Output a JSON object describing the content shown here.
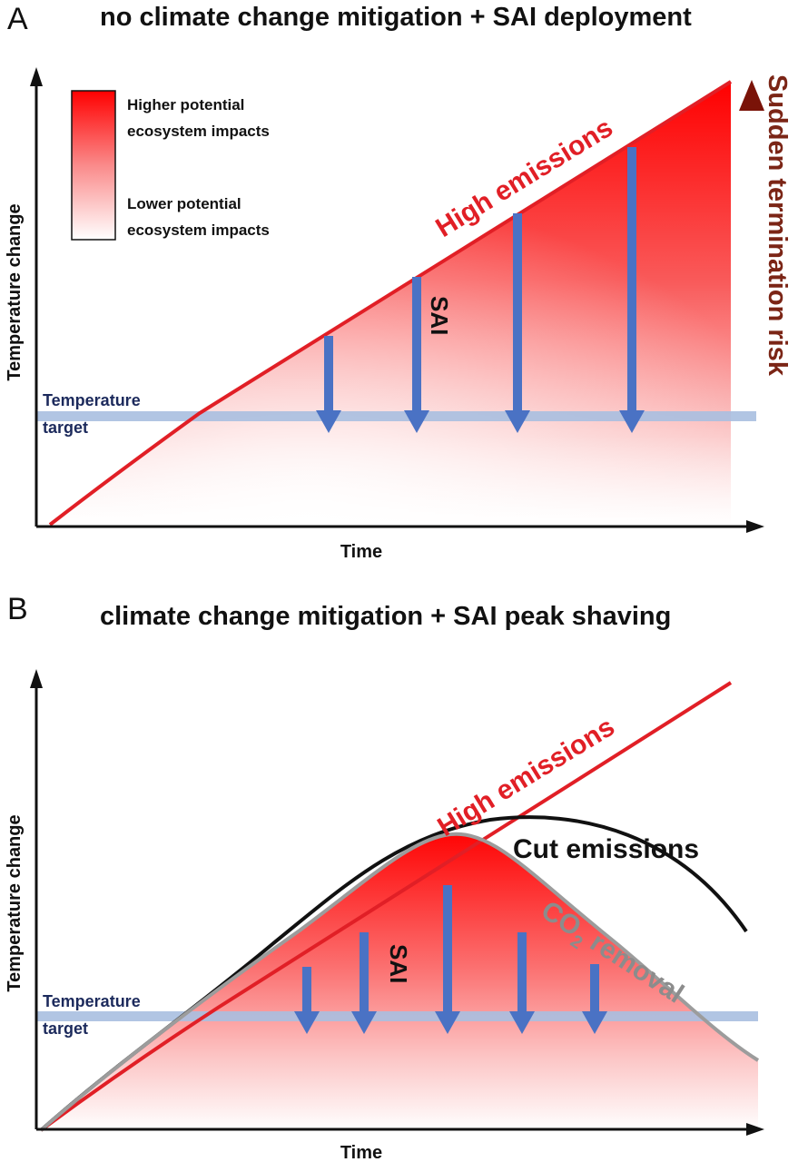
{
  "panel_a": {
    "letter": "A",
    "title": "no climate change mitigation + SAI deployment",
    "y_axis_label": "Temperature change",
    "x_axis_label": "Time",
    "target_label_line1": "Temperature",
    "target_label_line2": "target",
    "legend": {
      "high_line1": "Higher potential",
      "high_line2": "ecosystem impacts",
      "low_line1": "Lower potential",
      "low_line2": "ecosystem impacts"
    },
    "high_emissions_label": "High emissions",
    "sai_label": "SAI",
    "termination_risk_label": "Sudden termination risk"
  },
  "panel_b": {
    "letter": "B",
    "title": "climate change mitigation + SAI peak shaving",
    "y_axis_label": "Temperature change",
    "x_axis_label": "Time",
    "target_label_line1": "Temperature",
    "target_label_line2": "target",
    "high_emissions_label": "High emissions",
    "cut_emissions_label": "Cut emissions",
    "co2_label_prefix": "CO",
    "co2_label_subscript": "2",
    "co2_label_suffix": " removal",
    "sai_label": "SAI"
  },
  "colors": {
    "high_emissions": "#e11f26",
    "cut_emissions": "#111111",
    "co2_removal": "#9c9c9c",
    "sai_arrows": "#4a72c4",
    "temperature_target": "#a8bfe0",
    "impact_high": "#ff0000",
    "impact_low": "#ffffff",
    "termination_risk_arrow": "#8b1a10",
    "axes": "#111111"
  }
}
